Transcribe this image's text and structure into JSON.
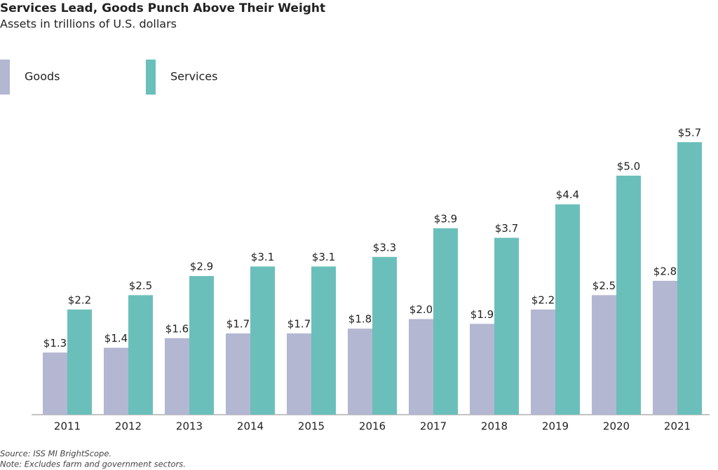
{
  "chart_data": {
    "type": "bar",
    "title": "Services Lead, Goods Punch Above Their Weight",
    "subtitle": "Assets in trillions of U.S. dollars",
    "categories": [
      "2011",
      "2012",
      "2013",
      "2014",
      "2015",
      "2016",
      "2017",
      "2018",
      "2019",
      "2020",
      "2021"
    ],
    "series": [
      {
        "name": "Goods",
        "color": "#b3b7d2",
        "values": [
          1.3,
          1.4,
          1.6,
          1.7,
          1.7,
          1.8,
          2.0,
          1.9,
          2.2,
          2.5,
          2.8
        ],
        "value_labels": [
          "$1.3",
          "$1.4",
          "$1.6",
          "$1.7",
          "$1.7",
          "$1.8",
          "$2.0",
          "$1.9",
          "$2.2",
          "$2.5",
          "$2.8"
        ]
      },
      {
        "name": "Services",
        "color": "#6bbfbb",
        "values": [
          2.2,
          2.5,
          2.9,
          3.1,
          3.1,
          3.3,
          3.9,
          3.7,
          4.4,
          5.0,
          5.7
        ],
        "value_labels": [
          "$2.2",
          "$2.5",
          "$2.9",
          "$3.1",
          "$3.1",
          "$3.3",
          "$3.9",
          "$3.7",
          "$4.4",
          "$5.0",
          "$5.7"
        ]
      }
    ],
    "legend": "top-left",
    "notes": [
      "Source: ISS MI BrightScope.",
      "Note: Excludes farm and government sectors."
    ]
  }
}
